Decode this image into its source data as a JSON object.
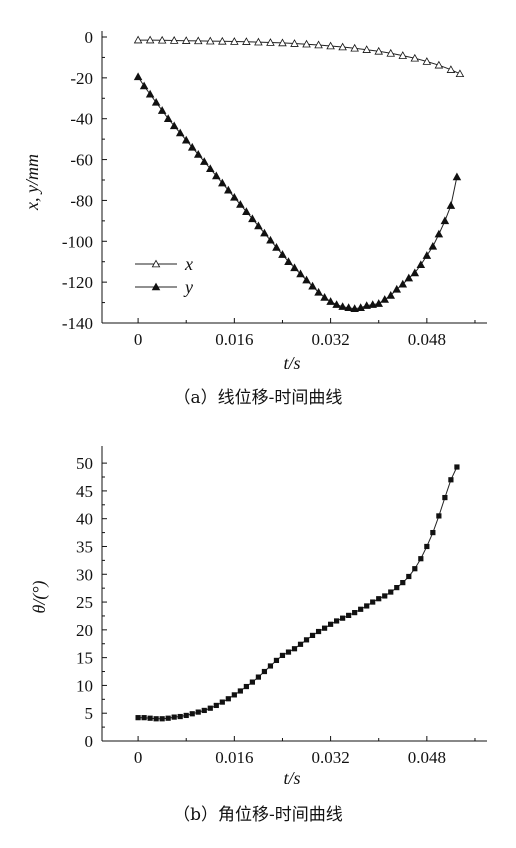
{
  "chart_data": [
    {
      "type": "line",
      "caption": "（a）线位移-时间曲线",
      "xlabel": "t/s",
      "ylabel": "x, y/mm",
      "xlim": [
        -0.006,
        0.058
      ],
      "ylim": [
        -140,
        0
      ],
      "xticks": [
        0,
        0.016,
        0.032,
        0.048
      ],
      "xtick_labels": [
        "0",
        "0.016",
        "0.032",
        "0.048"
      ],
      "yticks": [
        0,
        -20,
        -40,
        -60,
        -80,
        -100,
        -120,
        -140
      ],
      "ytick_labels": [
        "0",
        "-20",
        "-40",
        "-60",
        "-80",
        "-100",
        "-120",
        "-140"
      ],
      "legend_placement": "lower-left",
      "series": [
        {
          "name": "x",
          "marker": "open-triangle",
          "x": [
            0,
            0.002,
            0.004,
            0.006,
            0.008,
            0.01,
            0.012,
            0.014,
            0.016,
            0.018,
            0.02,
            0.022,
            0.024,
            0.026,
            0.028,
            0.03,
            0.032,
            0.034,
            0.036,
            0.038,
            0.04,
            0.042,
            0.044,
            0.046,
            0.048,
            0.05,
            0.052,
            0.0535
          ],
          "y": [
            -1.5,
            -1.5,
            -1.6,
            -1.7,
            -1.8,
            -1.9,
            -2.0,
            -2.1,
            -2.2,
            -2.3,
            -2.5,
            -2.7,
            -2.9,
            -3.2,
            -3.5,
            -3.9,
            -4.4,
            -4.9,
            -5.5,
            -6.2,
            -7.0,
            -8.0,
            -9.1,
            -10.4,
            -12.0,
            -13.8,
            -16.0,
            -18.0
          ]
        },
        {
          "name": "y",
          "marker": "filled-triangle",
          "x": [
            0,
            0.001,
            0.002,
            0.003,
            0.004,
            0.005,
            0.006,
            0.007,
            0.008,
            0.009,
            0.01,
            0.011,
            0.012,
            0.013,
            0.014,
            0.015,
            0.016,
            0.017,
            0.018,
            0.019,
            0.02,
            0.021,
            0.022,
            0.023,
            0.024,
            0.025,
            0.026,
            0.027,
            0.028,
            0.029,
            0.03,
            0.031,
            0.032,
            0.033,
            0.034,
            0.035,
            0.036,
            0.037,
            0.038,
            0.039,
            0.04,
            0.041,
            0.042,
            0.043,
            0.044,
            0.045,
            0.046,
            0.047,
            0.048,
            0.049,
            0.05,
            0.051,
            0.052,
            0.053
          ],
          "y": [
            -19.5,
            -24,
            -28,
            -32,
            -36,
            -40,
            -43.5,
            -47,
            -50.5,
            -54,
            -57.5,
            -61,
            -64.5,
            -68,
            -71.5,
            -75,
            -78.5,
            -82,
            -85.5,
            -89,
            -92.5,
            -96,
            -99.5,
            -103,
            -106.5,
            -110,
            -113,
            -116,
            -119,
            -122,
            -125,
            -127.5,
            -129.5,
            -131,
            -132,
            -132.5,
            -133,
            -132.5,
            -131.5,
            -131,
            -130.5,
            -128.5,
            -126.5,
            -123.5,
            -121,
            -118,
            -115.5,
            -111.5,
            -107,
            -102.5,
            -96.5,
            -90,
            -82.5,
            -68.5
          ]
        }
      ]
    },
    {
      "type": "line",
      "caption": "（b）角位移-时间曲线",
      "xlabel": "t/s",
      "ylabel": "θ/(°)",
      "xlim": [
        -0.006,
        0.058
      ],
      "ylim": [
        0,
        52
      ],
      "xticks": [
        0,
        0.016,
        0.032,
        0.048
      ],
      "xtick_labels": [
        "0",
        "0.016",
        "0.032",
        "0.048"
      ],
      "yticks": [
        0,
        5,
        10,
        15,
        20,
        25,
        30,
        35,
        40,
        45,
        50
      ],
      "ytick_labels": [
        "0",
        "5",
        "10",
        "15",
        "20",
        "25",
        "30",
        "35",
        "40",
        "45",
        "50"
      ],
      "series": [
        {
          "marker": "filled-square",
          "x": [
            0,
            0.001,
            0.002,
            0.003,
            0.004,
            0.005,
            0.006,
            0.007,
            0.008,
            0.009,
            0.01,
            0.011,
            0.012,
            0.013,
            0.014,
            0.015,
            0.016,
            0.017,
            0.018,
            0.019,
            0.02,
            0.021,
            0.022,
            0.023,
            0.024,
            0.025,
            0.026,
            0.027,
            0.028,
            0.029,
            0.03,
            0.031,
            0.032,
            0.033,
            0.034,
            0.035,
            0.036,
            0.037,
            0.038,
            0.039,
            0.04,
            0.041,
            0.042,
            0.043,
            0.044,
            0.045,
            0.046,
            0.047,
            0.048,
            0.049,
            0.05,
            0.051,
            0.052,
            0.053
          ],
          "y": [
            4.2,
            4.2,
            4.1,
            4.0,
            4.0,
            4.1,
            4.3,
            4.4,
            4.6,
            4.9,
            5.2,
            5.5,
            5.9,
            6.4,
            7.0,
            7.6,
            8.3,
            9.0,
            9.8,
            10.6,
            11.5,
            12.5,
            13.5,
            14.5,
            15.4,
            16.0,
            16.6,
            17.4,
            18.2,
            19.0,
            19.7,
            20.3,
            21.0,
            21.6,
            22.1,
            22.6,
            23.1,
            23.7,
            24.3,
            25.0,
            25.6,
            26.1,
            26.8,
            27.6,
            28.5,
            29.6,
            31.0,
            32.8,
            35.0,
            37.5,
            40.5,
            43.8,
            47.0,
            49.3
          ]
        }
      ]
    }
  ]
}
